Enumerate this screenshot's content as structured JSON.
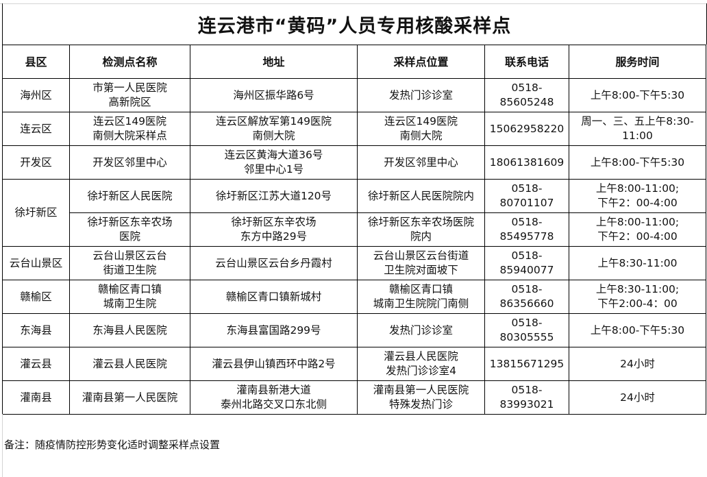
{
  "title": "连云港市“黄码”人员专用核酸采样点",
  "headers": [
    "县区",
    "检测点名称",
    "地址",
    "采样点位置",
    "联系电话",
    "服务时间"
  ],
  "rows": [
    {
      "county": "海州区",
      "name": "市第一人民医院\n高新院区",
      "address": "海州区振华路6号",
      "location": "发热门诊诊室",
      "phone": "0518-\n85605248",
      "hours": "上午8:00-下午5:30"
    },
    {
      "county": "连云区",
      "name": "连云区149医院\n南侧大院采样点",
      "address": "连云区解放军第149医院\n南侧大院",
      "location": "连云区149医院\n南侧大院",
      "phone": "15062958220",
      "hours": "周一、三、五上午8:30-\n11:00"
    },
    {
      "county": "开发区",
      "name": "开发区邻里中心",
      "address": "连云区黄海大道36号\n邻里中心1号",
      "location": "开发区邻里中心",
      "phone": "18061381609",
      "hours": "上午8:00-下午5:30"
    },
    {
      "county": "徐圩新区",
      "name": "徐圩新区人民医院",
      "address": "徐圩新区江苏大道120号",
      "location": "徐圩新区人民医院院内",
      "phone": "0518-\n80701107",
      "hours": "上午8:00-11:00;\n下午2：00-4:00"
    },
    {
      "county": "",
      "name": "徐圩新区东辛农场\n医院",
      "address": "徐圩新区东辛农场\n东方中路29号",
      "location": "徐圩新区东辛农场医院\n院内",
      "phone": "0518-\n85495778",
      "hours": "上午8:00-11:00;\n下午2：00-4:00"
    },
    {
      "county": "云台山景区",
      "name": "云台山景区云台\n街道卫生院",
      "address": "云台山景区云台乡丹霞村",
      "location": "云台山景区云台街道\n卫生院对面坡下",
      "phone": "0518-\n85940077",
      "hours": "上午8:30-11:00"
    },
    {
      "county": "赣榆区",
      "name": "赣榆区青口镇\n城南卫生院",
      "address": "赣榆区青口镇新城村",
      "location": "赣榆区青口镇\n城南卫生院院门南侧",
      "phone": "0518-\n86356660",
      "hours": "上午8:30-11:00;\n下午2:00-4：00"
    },
    {
      "county": "东海县",
      "name": "东海县人民医院",
      "address": "东海县富国路299号",
      "location": "发热门诊诊室",
      "phone": "0518-\n80305555",
      "hours": "上午8:00-下午5:30"
    },
    {
      "county": "灌云县",
      "name": "灌云县人民医院",
      "address": "灌云县伊山镇西环中路2号",
      "location": "灌云县人民医院\n发热门诊诊室4",
      "phone": "13815671295",
      "hours": "24小时"
    },
    {
      "county": "灌南县",
      "name": "灌南县第一人民医院",
      "address": "灌南县新港大道\n泰州北路交叉口东北侧",
      "location": "灌南县第一人民医院\n特殊发热门诊",
      "phone": "0518-\n83993021",
      "hours": "24小时"
    }
  ],
  "note": "备注：随疫情防控形势变化适时调整采样点设置"
}
